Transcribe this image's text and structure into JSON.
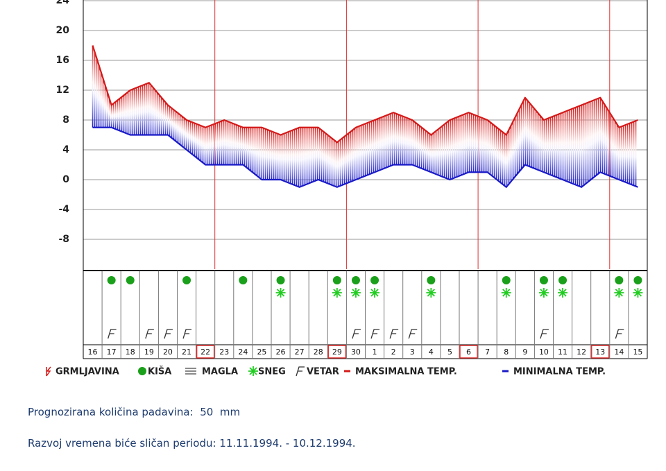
{
  "chart_data": {
    "type": "line",
    "categories": [
      "16",
      "17",
      "18",
      "19",
      "20",
      "21",
      "22",
      "23",
      "24",
      "25",
      "26",
      "27",
      "28",
      "29",
      "30",
      "1",
      "2",
      "3",
      "4",
      "5",
      "6",
      "7",
      "8",
      "9",
      "10",
      "11",
      "12",
      "13",
      "14",
      "15"
    ],
    "boxed": [
      false,
      false,
      false,
      false,
      false,
      false,
      true,
      false,
      false,
      false,
      false,
      false,
      false,
      true,
      false,
      false,
      false,
      false,
      false,
      false,
      true,
      false,
      false,
      false,
      false,
      false,
      false,
      true,
      false,
      false
    ],
    "series": [
      {
        "name": "MAKSIMALNA TEMP.",
        "color": "#d41a1a",
        "values": [
          18,
          10,
          12,
          13,
          10,
          8,
          7,
          8,
          7,
          7,
          6,
          7,
          7,
          5,
          7,
          8,
          9,
          8,
          6,
          8,
          9,
          8,
          6,
          11,
          8,
          9,
          10,
          11,
          7,
          8
        ]
      },
      {
        "name": "MINIMALNA TEMP.",
        "color": "#1a1ac8",
        "values": [
          7,
          7,
          6,
          6,
          6,
          4,
          2,
          2,
          2,
          0,
          0,
          -1,
          0,
          -1,
          0,
          1,
          2,
          2,
          1,
          0,
          1,
          1,
          -1,
          2,
          1,
          0,
          -1,
          1,
          0,
          -1
        ]
      }
    ],
    "symbols": [
      {
        "name": "GRMLJAVINA",
        "color": "#d41a1a",
        "days": [
          false,
          false,
          false,
          false,
          false,
          false,
          false,
          false,
          false,
          false,
          false,
          false,
          false,
          false,
          false,
          false,
          false,
          false,
          false,
          false,
          false,
          false,
          false,
          false,
          false,
          false,
          false,
          false,
          false,
          false
        ]
      },
      {
        "name": "KIŠA",
        "color": "#1aa01a",
        "days": [
          false,
          true,
          true,
          false,
          false,
          true,
          false,
          false,
          true,
          false,
          true,
          false,
          false,
          true,
          true,
          true,
          false,
          false,
          true,
          false,
          false,
          false,
          true,
          false,
          true,
          true,
          false,
          false,
          true,
          true
        ]
      },
      {
        "name": "MAGLA",
        "color": "#444444",
        "days": [
          false,
          false,
          false,
          false,
          false,
          false,
          false,
          false,
          false,
          false,
          false,
          false,
          false,
          false,
          false,
          false,
          false,
          false,
          false,
          false,
          false,
          false,
          false,
          false,
          false,
          false,
          false,
          false,
          false,
          false
        ]
      },
      {
        "name": "SNEG",
        "color": "#22cc22",
        "days": [
          false,
          false,
          false,
          false,
          false,
          false,
          false,
          false,
          false,
          false,
          true,
          false,
          false,
          true,
          true,
          true,
          false,
          false,
          true,
          false,
          false,
          false,
          true,
          false,
          true,
          true,
          false,
          false,
          true,
          true
        ]
      },
      {
        "name": "VETAR",
        "color": "#333333",
        "days": [
          false,
          true,
          false,
          true,
          true,
          true,
          false,
          false,
          false,
          false,
          false,
          false,
          false,
          false,
          true,
          true,
          true,
          true,
          false,
          false,
          false,
          false,
          false,
          false,
          true,
          false,
          false,
          false,
          true,
          false
        ]
      }
    ],
    "ylim": [
      -12,
      24
    ],
    "yticks": [
      -8,
      -4,
      0,
      4,
      8,
      12,
      16,
      20,
      24
    ],
    "grid": true
  },
  "notes": {
    "precipitation_label": "Prognozirana količina padavina:",
    "precipitation_value": 50,
    "precipitation_unit": "mm",
    "period_text": "Razvoj vremena biće sličan periodu: 11.11.1994. - 10.12.1994."
  }
}
